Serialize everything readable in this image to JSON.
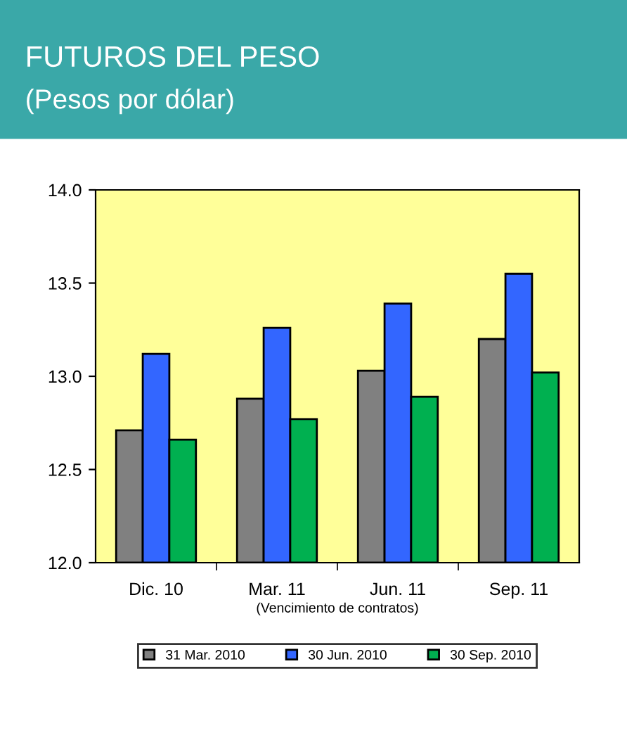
{
  "chart_data": {
    "type": "bar",
    "title": "FUTUROS DEL PESO",
    "subtitle": "(Pesos por dólar)",
    "xlabel": "(Vencimiento de contratos)",
    "categories": [
      "Dic. 10",
      "Mar. 11",
      "Jun. 11",
      "Sep. 11"
    ],
    "series": [
      {
        "name": "31 Mar. 2010",
        "color": "#808080",
        "values": [
          12.71,
          12.88,
          13.03,
          13.2
        ]
      },
      {
        "name": "30 Jun. 2010",
        "color": "#3366ff",
        "values": [
          13.12,
          13.26,
          13.39,
          13.55
        ]
      },
      {
        "name": "30 Sep. 2010",
        "color": "#00b050",
        "values": [
          12.66,
          12.77,
          12.89,
          13.02
        ]
      }
    ],
    "ylim": [
      12.0,
      14.0
    ],
    "yticks": [
      {
        "value": 12.0,
        "label": "12.0"
      },
      {
        "value": 12.5,
        "label": "12.5"
      },
      {
        "value": 13.0,
        "label": "13.0"
      },
      {
        "value": 13.5,
        "label": "13.5"
      },
      {
        "value": 14.0,
        "label": "14.0"
      }
    ],
    "grid": false,
    "legend": "bottom"
  }
}
